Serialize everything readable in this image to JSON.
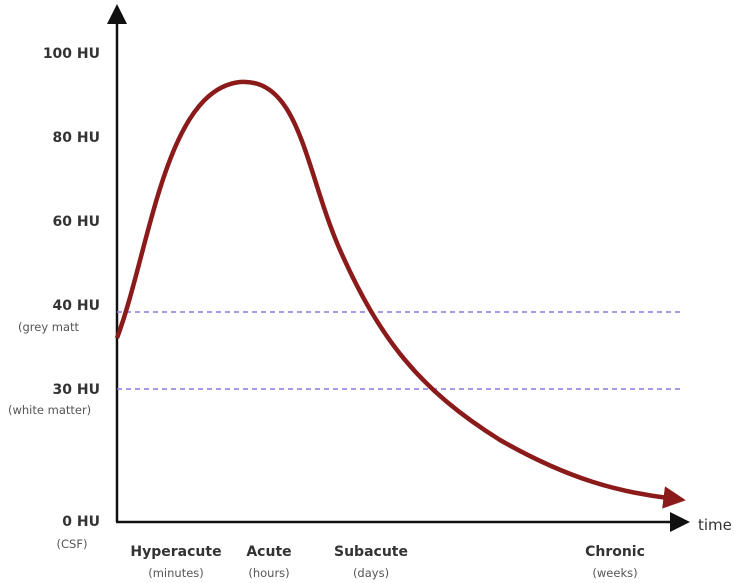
{
  "y_labels": [
    {
      "label": "100 HU"
    },
    {
      "label": "80 HU"
    },
    {
      "label": "60 HU"
    },
    {
      "label": "40 HU",
      "note": "(grey matt"
    },
    {
      "label": "30 HU",
      "note": "(white matter)"
    },
    {
      "label": "0 HU",
      "note": "(CSF)"
    }
  ],
  "x_labels": [
    {
      "label": "Hyperacute",
      "note": "(minutes)"
    },
    {
      "label": "Acute",
      "note": "(hours)"
    },
    {
      "label": "Subacute",
      "note": "(days)"
    },
    {
      "label": "Chronic",
      "note": "(weeks)"
    }
  ],
  "x_axis_label": "time"
}
